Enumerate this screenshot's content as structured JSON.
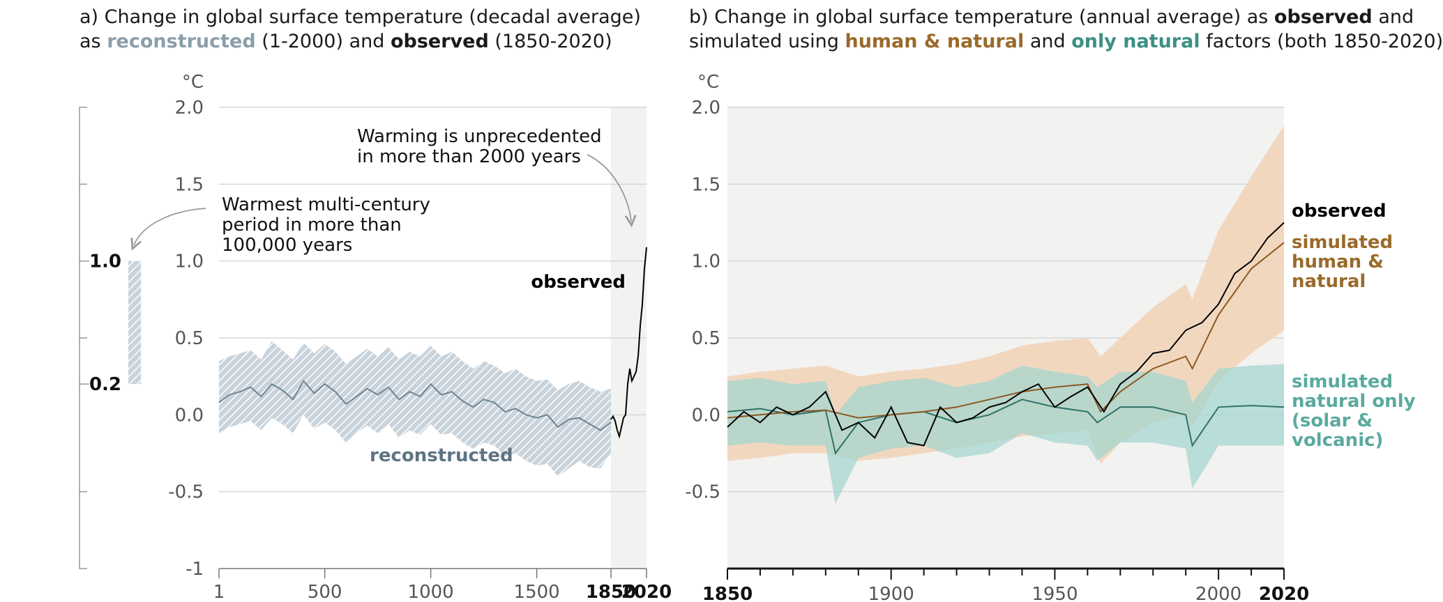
{
  "panel_a": {
    "title_prefix": "a) Change in global surface temperature (decadal average)",
    "title_as": "as",
    "title_reconstructed": "reconstructed",
    "title_mid": "(1-2000) and",
    "title_observed": "observed",
    "title_end": "(1850-2020)"
  },
  "panel_b": {
    "title_prefix": "b) Change in global surface temperature (annual average) as",
    "title_observed": "observed",
    "title_and": "and",
    "title_simulated": "simulated using",
    "title_human": "human & natural",
    "title_and2": "and",
    "title_natural": "only natural",
    "title_end": "factors (both 1850-2020)"
  },
  "colors": {
    "reconstructed": "#8a9eab",
    "reconstructed_band": "#b7c4cf",
    "observed": "#000000",
    "human_natural_line": "#8b5a1f",
    "human_natural_band": "#f2d2b6",
    "natural_line": "#2e7268",
    "natural_band": "#a6d6cf",
    "shade": "#f2f2f1"
  },
  "chart_data": [
    {
      "type": "line",
      "unit_label": "°C",
      "y_ticks": [
        "2.0",
        "1.5",
        "1.0",
        "0.5",
        "0.0",
        "-0.5",
        "-1"
      ],
      "x_ticks": [
        "1",
        "500",
        "1000",
        "1500",
        "1850",
        "2020"
      ],
      "ylim": [
        -1,
        2
      ],
      "xlim": [
        1,
        2020
      ],
      "grid": true,
      "side_bar_labels": [
        "1.0",
        "0.2"
      ],
      "side_bar_range": [
        0.2,
        1.0
      ],
      "annotation_unprecedented": [
        "Warming is unprecedented",
        "in more than 2000 years"
      ],
      "annotation_warmest": [
        "Warmest multi-century",
        "period in more than",
        "100,000 years"
      ],
      "label_observed": "observed",
      "label_reconstructed": "reconstructed",
      "series": [
        {
          "name": "reconstructed",
          "x": [
            1,
            50,
            100,
            150,
            200,
            250,
            300,
            350,
            400,
            450,
            500,
            550,
            600,
            650,
            700,
            750,
            800,
            850,
            900,
            950,
            1000,
            1050,
            1100,
            1150,
            1200,
            1250,
            1300,
            1350,
            1400,
            1450,
            1500,
            1550,
            1600,
            1650,
            1700,
            1750,
            1800,
            1850
          ],
          "y": [
            0.08,
            0.13,
            0.15,
            0.18,
            0.12,
            0.2,
            0.16,
            0.1,
            0.22,
            0.14,
            0.2,
            0.15,
            0.07,
            0.12,
            0.17,
            0.13,
            0.18,
            0.1,
            0.15,
            0.12,
            0.2,
            0.13,
            0.15,
            0.09,
            0.05,
            0.1,
            0.08,
            0.02,
            0.04,
            0.0,
            -0.02,
            0.0,
            -0.08,
            -0.03,
            -0.02,
            -0.06,
            -0.1,
            -0.05
          ],
          "band_lower": [
            -0.12,
            -0.08,
            -0.06,
            -0.04,
            -0.1,
            -0.02,
            -0.06,
            -0.12,
            0.0,
            -0.09,
            -0.05,
            -0.1,
            -0.18,
            -0.12,
            -0.07,
            -0.12,
            -0.06,
            -0.15,
            -0.1,
            -0.13,
            -0.06,
            -0.13,
            -0.12,
            -0.18,
            -0.22,
            -0.18,
            -0.2,
            -0.27,
            -0.25,
            -0.3,
            -0.33,
            -0.32,
            -0.4,
            -0.35,
            -0.3,
            -0.34,
            -0.35,
            -0.25
          ],
          "band_upper": [
            0.35,
            0.38,
            0.4,
            0.42,
            0.36,
            0.48,
            0.42,
            0.36,
            0.47,
            0.4,
            0.46,
            0.41,
            0.33,
            0.38,
            0.43,
            0.38,
            0.44,
            0.36,
            0.41,
            0.38,
            0.45,
            0.38,
            0.41,
            0.35,
            0.3,
            0.35,
            0.32,
            0.27,
            0.3,
            0.25,
            0.22,
            0.23,
            0.16,
            0.2,
            0.22,
            0.18,
            0.15,
            0.17
          ]
        },
        {
          "name": "observed",
          "x": [
            1850,
            1860,
            1870,
            1880,
            1890,
            1900,
            1910,
            1920,
            1930,
            1940,
            1950,
            1960,
            1970,
            1980,
            1990,
            2000,
            2010,
            2020
          ],
          "y": [
            -0.03,
            -0.01,
            -0.04,
            -0.1,
            -0.14,
            -0.08,
            -0.02,
            0.0,
            0.2,
            0.3,
            0.22,
            0.25,
            0.28,
            0.38,
            0.58,
            0.72,
            0.95,
            1.09
          ]
        }
      ]
    },
    {
      "type": "line",
      "unit_label": "°C",
      "y_ticks": [
        "2.0",
        "1.5",
        "1.0",
        "0.5",
        "0.0",
        "-0.5"
      ],
      "x_ticks": [
        "1850",
        "1900",
        "1950",
        "2000",
        "2020"
      ],
      "ylim": [
        -1,
        2
      ],
      "xlim": [
        1850,
        2020
      ],
      "grid": true,
      "label_observed": "observed",
      "label_human": [
        "simulated",
        "human &",
        "natural"
      ],
      "label_natural": [
        "simulated",
        "natural only",
        "(solar &",
        "volcanic)"
      ],
      "series": [
        {
          "name": "observed",
          "x": [
            1850,
            1855,
            1860,
            1865,
            1870,
            1875,
            1880,
            1885,
            1890,
            1895,
            1900,
            1905,
            1910,
            1915,
            1920,
            1925,
            1930,
            1935,
            1940,
            1945,
            1950,
            1955,
            1960,
            1965,
            1970,
            1975,
            1980,
            1985,
            1990,
            1995,
            2000,
            2005,
            2010,
            2015,
            2020
          ],
          "y": [
            -0.08,
            0.02,
            -0.05,
            0.05,
            0.0,
            0.05,
            0.15,
            -0.1,
            -0.05,
            -0.15,
            0.05,
            -0.18,
            -0.2,
            0.05,
            -0.05,
            -0.02,
            0.05,
            0.08,
            0.15,
            0.2,
            0.05,
            0.12,
            0.18,
            0.02,
            0.2,
            0.28,
            0.4,
            0.42,
            0.55,
            0.6,
            0.72,
            0.92,
            1.0,
            1.15,
            1.25
          ]
        },
        {
          "name": "simulated human & natural",
          "x": [
            1850,
            1860,
            1870,
            1880,
            1890,
            1900,
            1910,
            1920,
            1930,
            1940,
            1950,
            1960,
            1964,
            1970,
            1980,
            1990,
            1992,
            2000,
            2010,
            2020
          ],
          "y": [
            -0.02,
            0.0,
            0.02,
            0.03,
            -0.02,
            0.0,
            0.02,
            0.05,
            0.1,
            0.15,
            0.18,
            0.2,
            0.02,
            0.15,
            0.3,
            0.38,
            0.3,
            0.65,
            0.95,
            1.12
          ],
          "band_lower": [
            -0.3,
            -0.28,
            -0.25,
            -0.25,
            -0.3,
            -0.28,
            -0.25,
            -0.22,
            -0.18,
            -0.14,
            -0.12,
            -0.1,
            -0.32,
            -0.18,
            -0.05,
            0.0,
            -0.08,
            0.22,
            0.4,
            0.55
          ],
          "band_upper": [
            0.25,
            0.28,
            0.3,
            0.32,
            0.25,
            0.28,
            0.3,
            0.33,
            0.38,
            0.45,
            0.48,
            0.5,
            0.38,
            0.5,
            0.7,
            0.85,
            0.75,
            1.2,
            1.55,
            1.88
          ]
        },
        {
          "name": "simulated natural only (solar & volcanic)",
          "x": [
            1850,
            1860,
            1870,
            1880,
            1883,
            1890,
            1900,
            1910,
            1920,
            1930,
            1940,
            1950,
            1960,
            1963,
            1970,
            1980,
            1990,
            1992,
            2000,
            2010,
            2020
          ],
          "y": [
            0.02,
            0.04,
            0.0,
            0.03,
            -0.25,
            -0.05,
            0.0,
            0.02,
            -0.05,
            0.0,
            0.1,
            0.05,
            0.02,
            -0.05,
            0.05,
            0.05,
            0.0,
            -0.2,
            0.05,
            0.06,
            0.05
          ],
          "band_lower": [
            -0.2,
            -0.18,
            -0.2,
            -0.2,
            -0.58,
            -0.28,
            -0.22,
            -0.2,
            -0.28,
            -0.25,
            -0.12,
            -0.18,
            -0.2,
            -0.3,
            -0.18,
            -0.18,
            -0.22,
            -0.48,
            -0.2,
            -0.2,
            -0.2
          ],
          "band_upper": [
            0.22,
            0.24,
            0.2,
            0.22,
            0.0,
            0.18,
            0.22,
            0.24,
            0.18,
            0.22,
            0.32,
            0.28,
            0.25,
            0.18,
            0.28,
            0.28,
            0.22,
            0.08,
            0.3,
            0.32,
            0.33
          ]
        }
      ]
    }
  ]
}
